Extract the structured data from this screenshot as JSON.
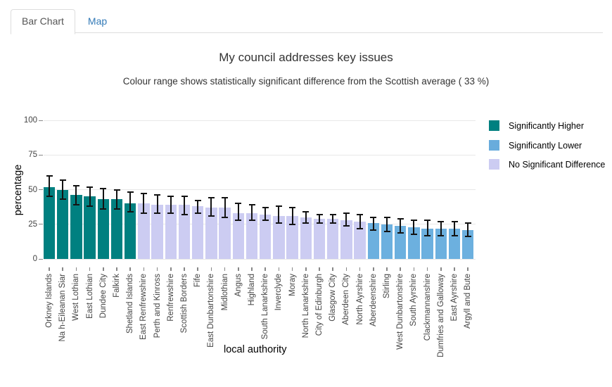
{
  "tabs": [
    {
      "label": "Bar Chart",
      "active": true
    },
    {
      "label": "Map",
      "active": false
    }
  ],
  "title": "My council addresses key issues",
  "subtitle": "Colour range shows statistically significant difference from the Scottish average ( 33 %)",
  "chart_data": {
    "type": "bar",
    "title": "My council addresses key issues",
    "xlabel": "local authority",
    "ylabel": "percentage",
    "ylim": [
      0,
      100
    ],
    "yticks": [
      0,
      25,
      50,
      75,
      100
    ],
    "grid": true,
    "scottish_average_pct": 33,
    "legend_position": "right",
    "legend": [
      {
        "key": "higher",
        "label": "Significantly Higher",
        "color": "#008080"
      },
      {
        "key": "lower",
        "label": "Significantly Lower",
        "color": "#69ACDC"
      },
      {
        "key": "none",
        "label": "No Significant Difference",
        "color": "#CCCCF2"
      }
    ],
    "colors": {
      "higher": "#008080",
      "lower": "#6CB0DF",
      "none": "#CCCCF2"
    },
    "error_bar_color": "#131313",
    "bars": [
      {
        "label": "Orkney Islands",
        "value": 52,
        "ci_low": 45,
        "ci_high": 60,
        "significance": "higher"
      },
      {
        "label": "Na h-Eileanan Siar",
        "value": 50,
        "ci_low": 43,
        "ci_high": 57,
        "significance": "higher"
      },
      {
        "label": "West Lothian",
        "value": 46,
        "ci_low": 39,
        "ci_high": 53,
        "significance": "higher"
      },
      {
        "label": "East Lothian",
        "value": 45,
        "ci_low": 38,
        "ci_high": 52,
        "significance": "higher"
      },
      {
        "label": "Dundee City",
        "value": 43,
        "ci_low": 36,
        "ci_high": 51,
        "significance": "higher"
      },
      {
        "label": "Falkirk",
        "value": 43,
        "ci_low": 36,
        "ci_high": 50,
        "significance": "higher"
      },
      {
        "label": "Shetland Islands",
        "value": 40,
        "ci_low": 34,
        "ci_high": 48,
        "significance": "higher"
      },
      {
        "label": "East Renfrewshire",
        "value": 40,
        "ci_low": 33,
        "ci_high": 47,
        "significance": "none"
      },
      {
        "label": "Perth and Kinross",
        "value": 39,
        "ci_low": 33,
        "ci_high": 46,
        "significance": "none"
      },
      {
        "label": "Renfrewshire",
        "value": 39,
        "ci_low": 33,
        "ci_high": 45,
        "significance": "none"
      },
      {
        "label": "Scottish Borders",
        "value": 39,
        "ci_low": 32,
        "ci_high": 45,
        "significance": "none"
      },
      {
        "label": "Fife",
        "value": 38,
        "ci_low": 33,
        "ci_high": 42,
        "significance": "none"
      },
      {
        "label": "East Dunbartonshire",
        "value": 37,
        "ci_low": 31,
        "ci_high": 44,
        "significance": "none"
      },
      {
        "label": "Midlothian",
        "value": 37,
        "ci_low": 30,
        "ci_high": 44,
        "significance": "none"
      },
      {
        "label": "Angus",
        "value": 33,
        "ci_low": 28,
        "ci_high": 40,
        "significance": "none"
      },
      {
        "label": "Highland",
        "value": 33,
        "ci_low": 28,
        "ci_high": 39,
        "significance": "none"
      },
      {
        "label": "South Lanarkshire",
        "value": 32,
        "ci_low": 28,
        "ci_high": 37,
        "significance": "none"
      },
      {
        "label": "Inverclyde",
        "value": 31,
        "ci_low": 26,
        "ci_high": 38,
        "significance": "none"
      },
      {
        "label": "Moray",
        "value": 31,
        "ci_low": 25,
        "ci_high": 37,
        "significance": "none"
      },
      {
        "label": "North Lanarkshire",
        "value": 30,
        "ci_low": 26,
        "ci_high": 34,
        "significance": "none"
      },
      {
        "label": "City of Edinburgh",
        "value": 29,
        "ci_low": 26,
        "ci_high": 32,
        "significance": "none"
      },
      {
        "label": "Glasgow City",
        "value": 29,
        "ci_low": 26,
        "ci_high": 32,
        "significance": "none"
      },
      {
        "label": "Aberdeen City",
        "value": 28,
        "ci_low": 24,
        "ci_high": 33,
        "significance": "none"
      },
      {
        "label": "North Ayrshire",
        "value": 27,
        "ci_low": 22,
        "ci_high": 32,
        "significance": "none"
      },
      {
        "label": "Aberdeenshire",
        "value": 26,
        "ci_low": 21,
        "ci_high": 30,
        "significance": "lower"
      },
      {
        "label": "Stirling",
        "value": 25,
        "ci_low": 20,
        "ci_high": 30,
        "significance": "lower"
      },
      {
        "label": "West Dunbartonshire",
        "value": 24,
        "ci_low": 19,
        "ci_high": 29,
        "significance": "lower"
      },
      {
        "label": "South Ayrshire",
        "value": 23,
        "ci_low": 18,
        "ci_high": 28,
        "significance": "lower"
      },
      {
        "label": "Clackmannanshire",
        "value": 22,
        "ci_low": 17,
        "ci_high": 28,
        "significance": "lower"
      },
      {
        "label": "Dumfries and Galloway",
        "value": 22,
        "ci_low": 17,
        "ci_high": 27,
        "significance": "lower"
      },
      {
        "label": "East Ayrshire",
        "value": 22,
        "ci_low": 17,
        "ci_high": 27,
        "significance": "lower"
      },
      {
        "label": "Argyll and Bute",
        "value": 21,
        "ci_low": 16,
        "ci_high": 26,
        "significance": "lower"
      }
    ]
  }
}
